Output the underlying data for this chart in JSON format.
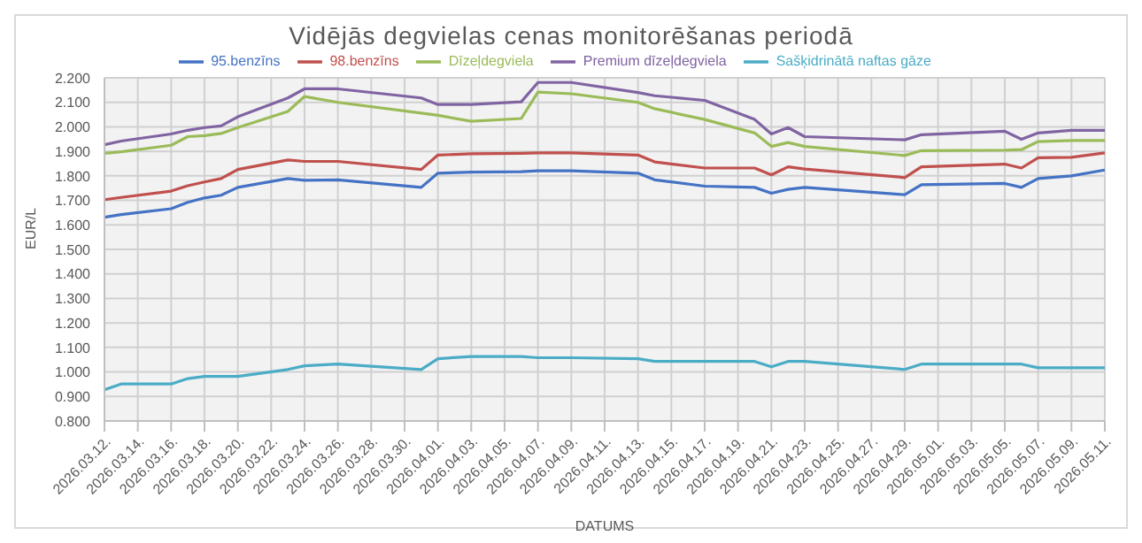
{
  "chart_data": {
    "type": "line",
    "title": "Vidējās degvielas cenas monitorēšanas periodā",
    "xlabel": "DATUMS",
    "ylabel": "EUR/L",
    "x": [
      "2026-03-12",
      "2026-03-13",
      "2026-03-16",
      "2026-03-17",
      "2026-03-18",
      "2026-03-19",
      "2026-03-20",
      "2026-03-23",
      "2026-03-24",
      "2026-03-26",
      "2026-03-31",
      "2026-04-01",
      "2026-04-03",
      "2026-04-06",
      "2026-04-07",
      "2026-04-09",
      "2026-04-13",
      "2026-04-14",
      "2026-04-17",
      "2026-04-20",
      "2026-04-21",
      "2026-04-22",
      "2026-04-23",
      "2026-04-29",
      "2026-04-30",
      "2026-05-05",
      "2026-05-06",
      "2026-05-07",
      "2026-05-09",
      "2026-05-11"
    ],
    "series": [
      {
        "name": "95.benzīns",
        "color": "#4472c4",
        "values": [
          1.631,
          1.642,
          1.666,
          1.692,
          1.71,
          1.721,
          1.753,
          1.789,
          1.782,
          1.784,
          1.753,
          1.811,
          1.815,
          1.817,
          1.821,
          1.821,
          1.811,
          1.784,
          1.758,
          1.753,
          1.729,
          1.745,
          1.753,
          1.723,
          1.764,
          1.769,
          1.753,
          1.789,
          1.8,
          1.824
        ]
      },
      {
        "name": "98.benzīns",
        "color": "#c0504d",
        "values": [
          1.703,
          1.712,
          1.738,
          1.76,
          1.775,
          1.789,
          1.826,
          1.865,
          1.859,
          1.859,
          1.826,
          1.885,
          1.89,
          1.892,
          1.894,
          1.894,
          1.885,
          1.857,
          1.832,
          1.832,
          1.804,
          1.837,
          1.828,
          1.793,
          1.837,
          1.848,
          1.832,
          1.874,
          1.876,
          1.894
        ]
      },
      {
        "name": "Dīzeļdegviela",
        "color": "#9bbb59",
        "values": [
          1.892,
          1.898,
          1.925,
          1.96,
          1.964,
          1.973,
          1.997,
          2.063,
          2.124,
          2.1,
          2.056,
          2.047,
          2.023,
          2.034,
          2.142,
          2.135,
          2.1,
          2.074,
          2.03,
          1.975,
          1.92,
          1.936,
          1.92,
          1.883,
          1.903,
          1.905,
          1.907,
          1.94,
          1.944,
          1.944
        ]
      },
      {
        "name": "Premium dīzeļdegviela",
        "color": "#8064a2",
        "values": [
          1.927,
          1.942,
          1.971,
          1.986,
          1.997,
          2.004,
          2.041,
          2.118,
          2.155,
          2.155,
          2.118,
          2.091,
          2.091,
          2.102,
          2.181,
          2.181,
          2.14,
          2.127,
          2.108,
          2.03,
          1.971,
          1.997,
          1.96,
          1.947,
          1.968,
          1.982,
          1.949,
          1.975,
          1.986,
          1.986
        ]
      },
      {
        "name": "Sašķidrinātā naftas gāze",
        "color": "#4bacc6",
        "values": [
          0.927,
          0.951,
          0.951,
          0.973,
          0.982,
          0.982,
          0.982,
          1.01,
          1.025,
          1.032,
          1.01,
          1.054,
          1.063,
          1.063,
          1.058,
          1.058,
          1.054,
          1.043,
          1.043,
          1.043,
          1.021,
          1.043,
          1.043,
          1.01,
          1.032,
          1.032,
          1.032,
          1.017,
          1.017,
          1.017
        ]
      }
    ],
    "xlim": [
      "2026-03-12",
      "2026-05-11"
    ],
    "xticks": [
      {
        "value": "2026-03-12",
        "label": "2026.03.12."
      },
      {
        "value": "2026-03-14",
        "label": "2026.03.14."
      },
      {
        "value": "2026-03-16",
        "label": "2026.03.16."
      },
      {
        "value": "2026-03-18",
        "label": "2026.03.18."
      },
      {
        "value": "2026-03-20",
        "label": "2026.03.20."
      },
      {
        "value": "2026-03-22",
        "label": "2026.03.22."
      },
      {
        "value": "2026-03-24",
        "label": "2026.03.24."
      },
      {
        "value": "2026-03-26",
        "label": "2026.03.26."
      },
      {
        "value": "2026-03-28",
        "label": "2026.03.28."
      },
      {
        "value": "2026-03-30",
        "label": "2026.03.30."
      },
      {
        "value": "2026-04-01",
        "label": "2026.04.01."
      },
      {
        "value": "2026-04-03",
        "label": "2026.04.03."
      },
      {
        "value": "2026-04-05",
        "label": "2026.04.05."
      },
      {
        "value": "2026-04-07",
        "label": "2026.04.07."
      },
      {
        "value": "2026-04-09",
        "label": "2026.04.09."
      },
      {
        "value": "2026-04-11",
        "label": "2026.04.11."
      },
      {
        "value": "2026-04-13",
        "label": "2026.04.13."
      },
      {
        "value": "2026-04-15",
        "label": "2026.04.15."
      },
      {
        "value": "2026-04-17",
        "label": "2026.04.17."
      },
      {
        "value": "2026-04-19",
        "label": "2026.04.19."
      },
      {
        "value": "2026-04-21",
        "label": "2026.04.21."
      },
      {
        "value": "2026-04-23",
        "label": "2026.04.23."
      },
      {
        "value": "2026-04-25",
        "label": "2026.04.25."
      },
      {
        "value": "2026-04-27",
        "label": "2026.04.27."
      },
      {
        "value": "2026-04-29",
        "label": "2026.04.29."
      },
      {
        "value": "2026-05-01",
        "label": "2026.05.01."
      },
      {
        "value": "2026-05-03",
        "label": "2026.05.03."
      },
      {
        "value": "2026-05-05",
        "label": "2026.05.05."
      },
      {
        "value": "2026-05-07",
        "label": "2026.05.07."
      },
      {
        "value": "2026-05-09",
        "label": "2026.05.09."
      },
      {
        "value": "2026-05-11",
        "label": "2026.05.11."
      }
    ],
    "ylim": [
      0.8,
      2.2
    ],
    "yticks": [
      {
        "value": 0.8,
        "label": "0.800"
      },
      {
        "value": 0.9,
        "label": "0.900"
      },
      {
        "value": 1.0,
        "label": "1.000"
      },
      {
        "value": 1.1,
        "label": "1.100"
      },
      {
        "value": 1.2,
        "label": "1.200"
      },
      {
        "value": 1.3,
        "label": "1.300"
      },
      {
        "value": 1.4,
        "label": "1.400"
      },
      {
        "value": 1.5,
        "label": "1.500"
      },
      {
        "value": 1.6,
        "label": "1.600"
      },
      {
        "value": 1.7,
        "label": "1.700"
      },
      {
        "value": 1.8,
        "label": "1.800"
      },
      {
        "value": 1.9,
        "label": "1.900"
      },
      {
        "value": 2.0,
        "label": "2.000"
      },
      {
        "value": 2.1,
        "label": "2.100"
      },
      {
        "value": 2.2,
        "label": "2.200"
      }
    ],
    "grid": true,
    "legend": "top"
  }
}
